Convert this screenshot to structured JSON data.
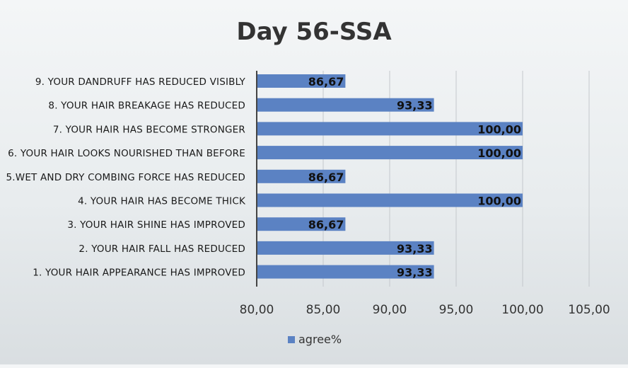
{
  "chart_data": {
    "type": "bar",
    "orientation": "horizontal",
    "title": "Day 56-SSA",
    "categories": [
      "1. YOUR HAIR APPEARANCE HAS IMPROVED",
      "2. YOUR HAIR FALL HAS REDUCED",
      "3. YOUR HAIR SHINE HAS IMPROVED",
      "4. YOUR HAIR HAS BECOME THICK",
      "5.WET AND DRY COMBING FORCE HAS REDUCED",
      "6. YOUR HAIR LOOKS NOURISHED THAN BEFORE",
      "7. YOUR HAIR HAS BECOME STRONGER",
      "8. YOUR HAIR BREAKAGE HAS REDUCED",
      "9. YOUR DANDRUFF HAS REDUCED VISIBLY"
    ],
    "series": [
      {
        "name": "agree%",
        "values": [
          93.33,
          93.33,
          86.67,
          100.0,
          86.67,
          100.0,
          100.0,
          93.33,
          86.67
        ],
        "data_labels": [
          "93,33",
          "93,33",
          "86,67",
          "100,00",
          "86,67",
          "100,00",
          "100,00",
          "93,33",
          "86,67"
        ],
        "color": "#5b82c3"
      }
    ],
    "xlim": [
      80,
      105
    ],
    "xticks": [
      80,
      85,
      90,
      95,
      100,
      105
    ],
    "xtick_labels": [
      "80,00",
      "85,00",
      "90,00",
      "95,00",
      "100,00",
      "105,00"
    ],
    "grid": "vertical",
    "legend": "bottom"
  },
  "colors": {
    "bar": "#5b82c3",
    "gridline": "#c4c8cc",
    "axis": "#444444",
    "title": "#333333"
  }
}
